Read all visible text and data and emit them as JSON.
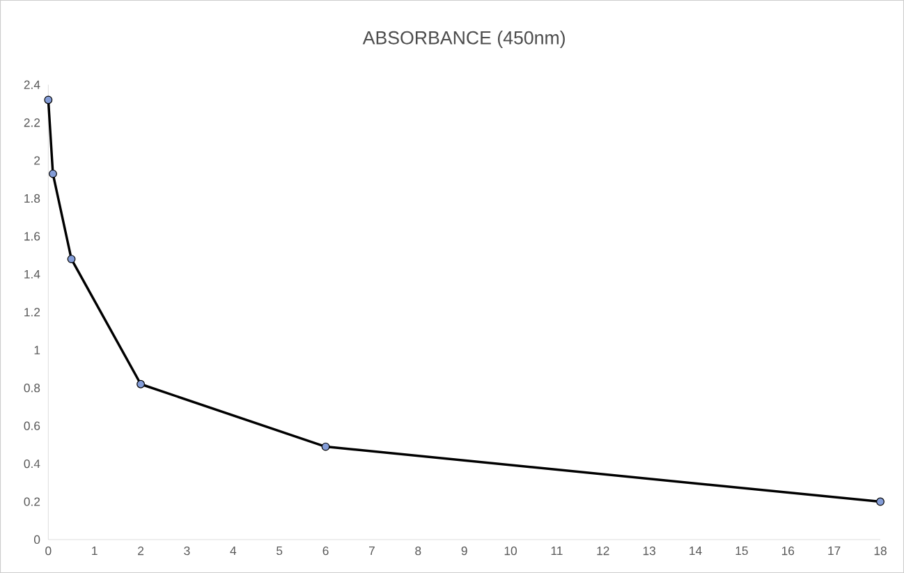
{
  "chart_data": {
    "type": "line",
    "title": "ABSORBANCE (450nm)",
    "x": [
      0,
      0.1,
      0.5,
      2,
      6,
      18
    ],
    "series": [
      {
        "color": "#000000",
        "values": [
          2.32,
          1.93,
          1.48,
          0.82,
          0.49,
          0.2
        ]
      }
    ],
    "xlim": [
      0,
      18
    ],
    "xticks": [
      0,
      1,
      2,
      3,
      4,
      5,
      6,
      7,
      8,
      9,
      10,
      11,
      12,
      13,
      14,
      15,
      16,
      17,
      18
    ],
    "ylim": [
      0,
      2.4
    ],
    "yticks": [
      0,
      0.2,
      0.4,
      0.6,
      0.8,
      1,
      1.2,
      1.4,
      1.6,
      1.8,
      2,
      2.2,
      2.4
    ],
    "grid": false,
    "marker": "circle",
    "line_style": "solid"
  }
}
